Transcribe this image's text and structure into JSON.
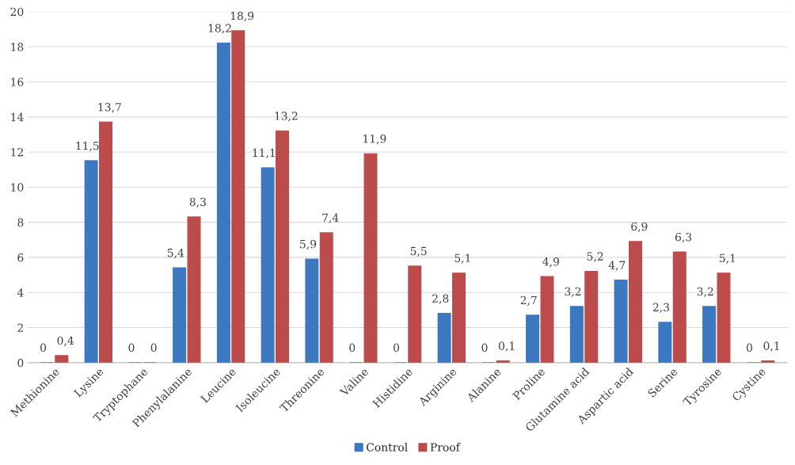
{
  "chart_data": {
    "type": "bar",
    "categories": [
      "Methionine",
      "Lysine",
      "Tryptophane",
      "Phenylalanine",
      "Leucine",
      "Isoleucine",
      "Threonine",
      "Valine",
      "Histidine",
      "Arginine",
      "Alanine",
      "Proline",
      "Glutamine acid",
      "Aspartic acid",
      "Serine",
      "Tyrosine",
      "Cystine"
    ],
    "series": [
      {
        "name": "Control",
        "color": "#3c78c0",
        "values": [
          0,
          11.5,
          0,
          5.4,
          18.2,
          11.1,
          5.9,
          0,
          0,
          2.8,
          0,
          2.7,
          3.2,
          4.7,
          2.3,
          3.2,
          0
        ],
        "value_labels": [
          "0",
          "11,5",
          "0",
          "5,4",
          "18,2",
          "11,1",
          "5,9",
          "0",
          "0",
          "2,8",
          "0",
          "2,7",
          "3,2",
          "4,7",
          "2,3",
          "3,2",
          "0"
        ]
      },
      {
        "name": "Proof",
        "color": "#bc4b4b",
        "values": [
          0.4,
          13.7,
          0,
          8.3,
          18.9,
          13.2,
          7.4,
          11.9,
          5.5,
          5.1,
          0.1,
          4.9,
          5.2,
          6.9,
          6.3,
          5.1,
          0.1
        ],
        "value_labels": [
          "0,4",
          "13,7",
          "0",
          "8,3",
          "18,9",
          "13,2",
          "7,4",
          "11,9",
          "5,5",
          "5,1",
          "0,1",
          "4,9",
          "5,2",
          "6,9",
          "6,3",
          "5,1",
          "0,1"
        ]
      }
    ],
    "ylim": [
      0,
      20
    ],
    "yticks": [
      0,
      2,
      4,
      6,
      8,
      10,
      12,
      14,
      16,
      18,
      20
    ],
    "grid": "y",
    "legend": "bottom"
  }
}
